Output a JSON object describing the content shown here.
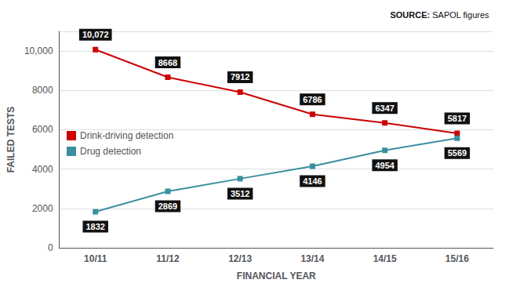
{
  "chart_data": {
    "type": "line",
    "categories": [
      "10/11",
      "11/12",
      "12/13",
      "13/14",
      "14/15",
      "15/16"
    ],
    "series": [
      {
        "name": "Drink-driving detection",
        "color": "#cc0000",
        "marker": "square",
        "values": [
          10072,
          8668,
          7912,
          6786,
          6347,
          5817
        ],
        "value_labels": [
          "10,072",
          "8668",
          "7912",
          "6786",
          "6347",
          "5817"
        ]
      },
      {
        "name": "Drug detection",
        "color": "#3a8fa0",
        "marker": "square",
        "values": [
          1832,
          2869,
          3512,
          4146,
          4954,
          5569
        ],
        "value_labels": [
          "1832",
          "2869",
          "3512",
          "4146",
          "4954",
          "5569"
        ]
      }
    ],
    "xlabel": "FINANCIAL YEAR",
    "ylabel": "FAILED TESTS",
    "ylim": [
      0,
      11000
    ],
    "yticks": [
      0,
      2000,
      4000,
      6000,
      8000,
      {
        "value": 10000,
        "label": "10,000"
      }
    ],
    "grid": true,
    "legend": "left",
    "data_labels": true,
    "source": [
      "SOURCE:",
      "SAPOL figures"
    ]
  }
}
